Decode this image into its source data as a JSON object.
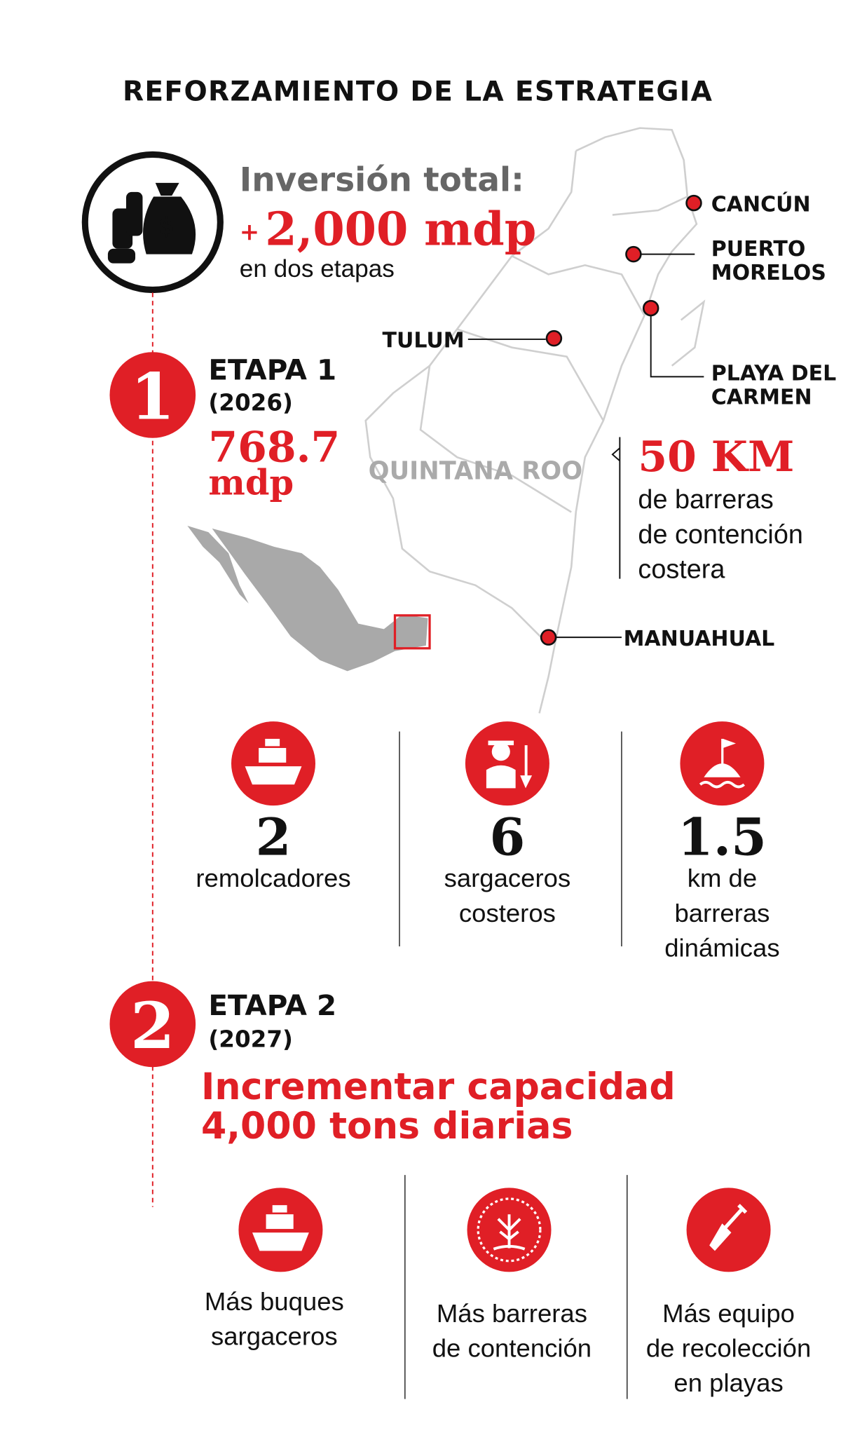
{
  "title": "REFORZAMIENTO DE LA ESTRATEGIA",
  "investment": {
    "label": "Inversión total:",
    "prefix": "+",
    "amount": "2,000 mdp",
    "note": "en dos etapas"
  },
  "map": {
    "region": "QUINTANA ROO",
    "places": {
      "cancun": [
        "CANCÚN"
      ],
      "puerto_morelos": [
        "PUERTO",
        "MORELOS"
      ],
      "tulum": [
        "TULUM"
      ],
      "playa_del_carmen": [
        "PLAYA DEL",
        "CARMEN"
      ],
      "manuahual": [
        "MANUAHUAL"
      ]
    }
  },
  "barriers": {
    "amount": "50 KM",
    "text": [
      "de barreras",
      "de contención",
      "costera"
    ]
  },
  "stages": [
    {
      "number": "1",
      "name": "ETAPA 1",
      "year": "(2026)",
      "amount": "768.7",
      "unit": "mdp",
      "items": [
        {
          "value": "2",
          "label": [
            "remolcadores"
          ]
        },
        {
          "value": "6",
          "label": [
            "sargaceros",
            "costeros"
          ]
        },
        {
          "value": "1.5",
          "label": [
            "km de",
            "barreras",
            "dinámicas"
          ]
        }
      ]
    },
    {
      "number": "2",
      "name": "ETAPA 2",
      "year": "(2027)",
      "headline": [
        "Incrementar capacidad",
        "4,000 tons diarias"
      ],
      "items": [
        {
          "label": [
            "Más buques",
            "sargaceros"
          ]
        },
        {
          "label": [
            "Más barreras",
            "de contención"
          ]
        },
        {
          "label": [
            "Más equipo",
            "de recolección",
            "en playas"
          ]
        }
      ]
    }
  ]
}
